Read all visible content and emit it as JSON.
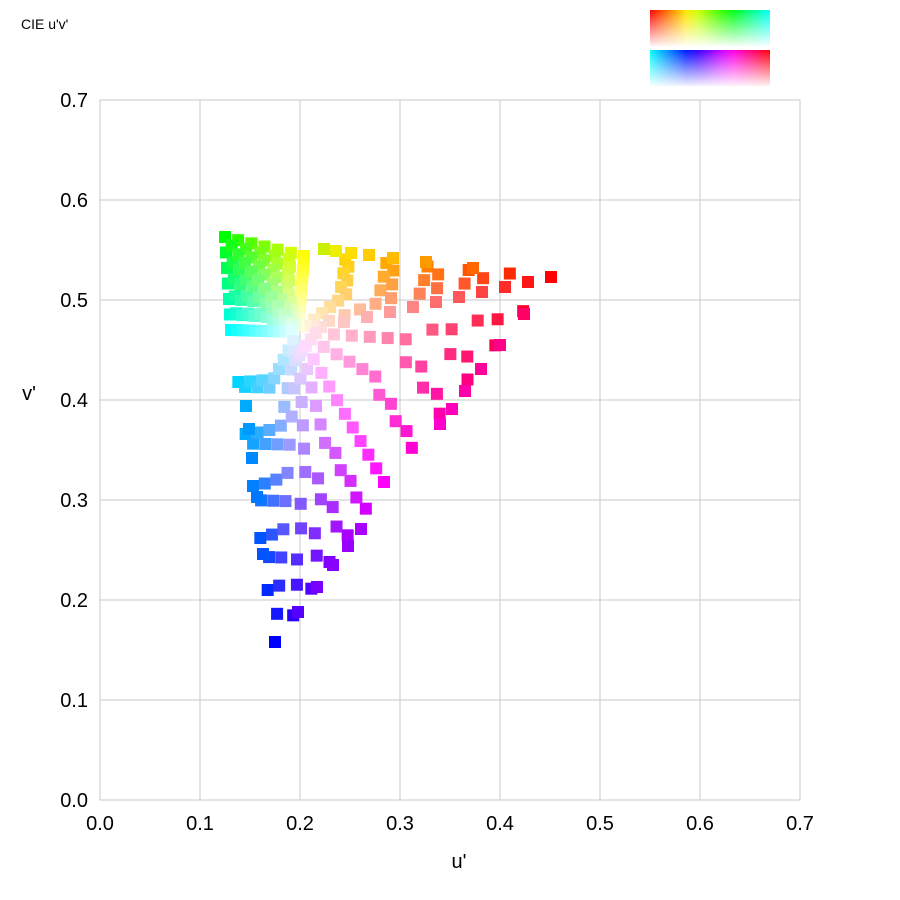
{
  "chart_data": {
    "type": "scatter",
    "title": "CIE u'v'",
    "xlabel": "u'",
    "ylabel": "v'",
    "xlim": [
      0.0,
      0.7
    ],
    "ylim": [
      0.0,
      0.7
    ],
    "xticks": [
      "0.0",
      "0.1",
      "0.2",
      "0.3",
      "0.4",
      "0.5",
      "0.6",
      "0.7"
    ],
    "yticks": [
      "0.0",
      "0.1",
      "0.2",
      "0.3",
      "0.4",
      "0.5",
      "0.6",
      "0.7"
    ],
    "grid": true,
    "legend": "top-right color swatch strip",
    "sample_ring_count": 11,
    "primaries": {
      "red": {
        "u": 0.451,
        "v": 0.523
      },
      "yellow": {
        "u": 0.204,
        "v": 0.544
      },
      "green": {
        "u": 0.125,
        "v": 0.563
      },
      "cyan": {
        "u": 0.131,
        "v": 0.47
      },
      "blue": {
        "u": 0.175,
        "v": 0.158
      },
      "magenta": {
        "u": 0.284,
        "v": 0.318
      },
      "white": {
        "u": 0.198,
        "v": 0.468
      }
    },
    "series": [
      {
        "values": [
          {
            "u": 0.451,
            "v": 0.523,
            "color": "#ff0000"
          },
          {
            "u": 0.373,
            "v": 0.532,
            "color": "#ff6600"
          },
          {
            "u": 0.326,
            "v": 0.538,
            "color": "#ff9900"
          },
          {
            "u": 0.293,
            "v": 0.542,
            "color": "#ffbb00"
          },
          {
            "u": 0.269,
            "v": 0.545,
            "color": "#ffcc00"
          },
          {
            "u": 0.251,
            "v": 0.547,
            "color": "#ffdd00"
          },
          {
            "u": 0.236,
            "v": 0.549,
            "color": "#eeee00"
          },
          {
            "u": 0.224,
            "v": 0.551,
            "color": "#ccee00"
          },
          {
            "u": 0.424,
            "v": 0.486,
            "color": "#ff0066"
          },
          {
            "u": 0.4,
            "v": 0.455,
            "color": "#ff0088"
          },
          {
            "u": 0.381,
            "v": 0.431,
            "color": "#ff0099"
          },
          {
            "u": 0.365,
            "v": 0.409,
            "color": "#ff00aa"
          },
          {
            "u": 0.352,
            "v": 0.391,
            "color": "#ff00bb"
          },
          {
            "u": 0.34,
            "v": 0.376,
            "color": "#ff00cc"
          },
          {
            "u": 0.175,
            "v": 0.158,
            "color": "#0000ff"
          },
          {
            "u": 0.198,
            "v": 0.188,
            "color": "#5500ff"
          },
          {
            "u": 0.217,
            "v": 0.213,
            "color": "#7700ff"
          },
          {
            "u": 0.233,
            "v": 0.235,
            "color": "#8800ff"
          },
          {
            "u": 0.248,
            "v": 0.254,
            "color": "#9900ff"
          },
          {
            "u": 0.261,
            "v": 0.271,
            "color": "#aa00ff"
          },
          {
            "u": 0.163,
            "v": 0.246,
            "color": "#0055ff"
          },
          {
            "u": 0.157,
            "v": 0.303,
            "color": "#0077ff"
          },
          {
            "u": 0.152,
            "v": 0.342,
            "color": "#0088ff"
          },
          {
            "u": 0.149,
            "v": 0.371,
            "color": "#0099ff"
          },
          {
            "u": 0.146,
            "v": 0.394,
            "color": "#00aaff"
          }
        ]
      }
    ]
  }
}
